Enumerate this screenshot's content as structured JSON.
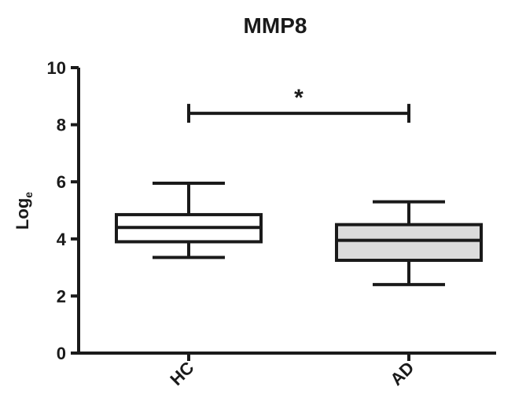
{
  "chart_data": {
    "type": "box",
    "title": "MMP8",
    "ylabel_main": "Log",
    "ylabel_sub": "e",
    "xlabel": "",
    "ylim": [
      0,
      10
    ],
    "yticks": [
      "0",
      "2",
      "4",
      "6",
      "8",
      "10"
    ],
    "categories": [
      "HC",
      "AD"
    ],
    "boxes": [
      {
        "category": "HC",
        "min": 3.35,
        "q1": 3.9,
        "median": 4.4,
        "q3": 4.85,
        "max": 5.95,
        "fill": "#ffffff"
      },
      {
        "category": "AD",
        "min": 2.4,
        "q1": 3.25,
        "median": 3.95,
        "q3": 4.5,
        "max": 5.3,
        "fill": "#dcdcdc"
      }
    ],
    "significance": {
      "from": "HC",
      "to": "AD",
      "y": 8.4,
      "label": "*"
    },
    "colors": {
      "stroke": "#1a1a1a",
      "hc_fill": "#ffffff",
      "ad_fill": "#dcdcdc"
    }
  }
}
